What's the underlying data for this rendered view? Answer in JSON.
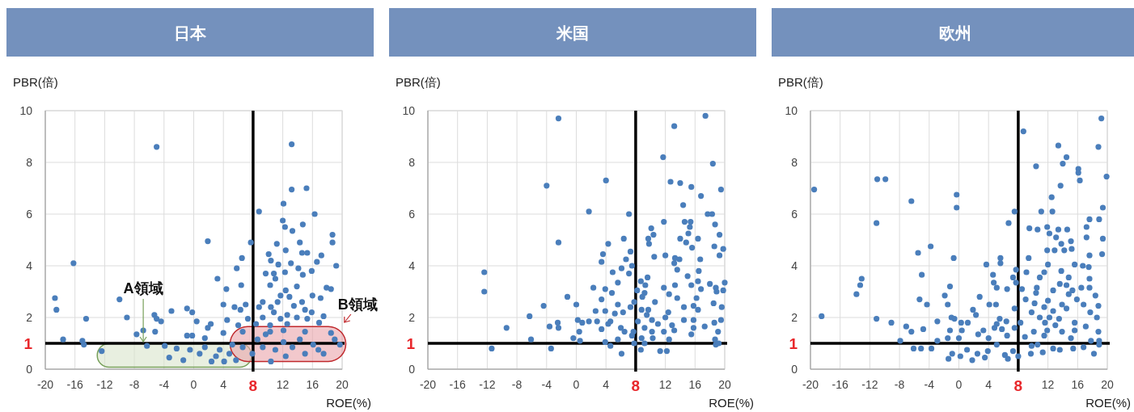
{
  "chart_data": [
    {
      "type": "scatter",
      "title": "日本",
      "xlabel": "ROE(%)",
      "ylabel": "PBR(倍)",
      "color": "#4a7ebb",
      "marker": "circle",
      "grid": true,
      "xlim": [
        -20,
        20
      ],
      "ylim": [
        0,
        10
      ],
      "xticks": [
        -20,
        -16,
        -12,
        -8,
        -4,
        0,
        4,
        12,
        16,
        20
      ],
      "yticks": [
        0,
        2,
        4,
        6,
        8,
        10
      ],
      "ref_lines": [
        {
          "axis": "x",
          "value": 8,
          "label": "8",
          "color": "#000000"
        },
        {
          "axis": "y",
          "value": 1,
          "label": "1",
          "color": "#000000"
        }
      ],
      "annotations": [
        {
          "text": "A領域",
          "x": -6.8,
          "y": 1
        },
        {
          "text": "B領域",
          "x": 19,
          "y": 1.5
        }
      ],
      "x": [
        -5,
        13.2,
        13.2,
        15.2,
        12.1,
        8.8,
        16.3,
        12,
        12.3,
        13.3,
        14.7,
        1.9,
        7.7,
        11.2,
        14.3,
        18.7,
        18.7,
        -16.2,
        6.5,
        10.1,
        12.4,
        14.6,
        15.3,
        17.2,
        16.6,
        10.4,
        11.4,
        13.1,
        19.2,
        5.8,
        9.7,
        10.8,
        12.3,
        14.1,
        15.9,
        11,
        14.7,
        3.2,
        4.4,
        6.4,
        10.3,
        13.9,
        12.4,
        17.9,
        18.5,
        -18.7,
        -10,
        11.7,
        12.9,
        16,
        17.1,
        9.3,
        11.3,
        14.6,
        4,
        7,
        8.8,
        10.4,
        13.5,
        -18.5,
        -0.9,
        -3,
        5.5,
        6.3,
        15,
        -0.2,
        10.8,
        12.6,
        15.9,
        -5.3,
        -9,
        -14.5,
        -5,
        -4.4,
        0.4,
        4.5,
        7.3,
        9.3,
        11.7,
        13.9,
        15.3,
        17.5,
        2.3,
        1.9,
        6,
        8.4,
        10.3,
        12.6,
        16.9,
        -5.2,
        -7.7,
        -6.8,
        -0.9,
        -0.2,
        1.5,
        4,
        6.6,
        10.3,
        12.1,
        15,
        18.5,
        -17.6,
        -15,
        -14.8,
        -6.3,
        -12.4,
        -3.9,
        -2.3,
        -3.3,
        -1.4,
        -0.5,
        0.8,
        1.5,
        2.4,
        3,
        3.5,
        4.1,
        4.8,
        5.7,
        5.2,
        8.6,
        9.3,
        10.4,
        11,
        12.1,
        12.4,
        13.3,
        14.3,
        15,
        16.1,
        16.8,
        17.5,
        19,
        19.7,
        7.9,
        6.6,
        9.7
      ],
      "values": [
        8.6,
        8.7,
        6.95,
        7,
        6.4,
        6.1,
        6,
        5.75,
        5.5,
        5.35,
        5.6,
        4.95,
        4.9,
        4.85,
        4.9,
        5.2,
        4.9,
        4.1,
        4.3,
        4.45,
        4.6,
        4.5,
        4.5,
        4.4,
        4.15,
        4.2,
        4.05,
        4.1,
        4,
        3.9,
        3.7,
        3.7,
        3.75,
        3.9,
        3.8,
        3.5,
        3.65,
        3.5,
        3.1,
        3.25,
        3.25,
        3.2,
        3.05,
        3.15,
        3.1,
        2.75,
        2.7,
        2.85,
        2.8,
        2.85,
        2.75,
        2.6,
        2.6,
        2.6,
        2.5,
        2.5,
        2.4,
        2.4,
        2.45,
        2.3,
        2.35,
        2.25,
        2.4,
        2.3,
        2.3,
        2.2,
        2.2,
        2.1,
        2.2,
        2.1,
        2,
        1.95,
        1.95,
        1.85,
        1.85,
        1.9,
        1.95,
        2,
        1.95,
        2,
        1.95,
        2.05,
        1.75,
        1.6,
        1.7,
        1.75,
        1.7,
        1.75,
        1.8,
        1.45,
        1.35,
        1.5,
        1.3,
        1.3,
        1.2,
        1.4,
        1.45,
        1.45,
        1.5,
        1.45,
        1.4,
        1.15,
        1.1,
        0.95,
        0.9,
        0.7,
        0.9,
        0.8,
        0.45,
        0.35,
        0.75,
        0.6,
        0.85,
        0.3,
        0.5,
        0.75,
        0.3,
        0.6,
        0.35,
        0.95,
        1.15,
        0.85,
        0.3,
        0.75,
        1.05,
        0.5,
        0.85,
        1.15,
        0.6,
        0.95,
        0.75,
        0.6,
        1.15,
        0.95,
        0.6,
        0.85,
        1.35
      ]
    },
    {
      "type": "scatter",
      "title": "米国",
      "xlabel": "ROE(%)",
      "ylabel": "PBR(倍)",
      "color": "#4a7ebb",
      "marker": "circle",
      "grid": true,
      "xlim": [
        -20,
        20
      ],
      "ylim": [
        0,
        10
      ],
      "xticks": [
        -20,
        -16,
        -12,
        -8,
        -4,
        0,
        4,
        12,
        16,
        20
      ],
      "yticks": [
        0,
        2,
        4,
        6,
        8,
        10
      ],
      "ref_lines": [
        {
          "axis": "x",
          "value": 8,
          "label": "8",
          "color": "#000000"
        },
        {
          "axis": "y",
          "value": 1,
          "label": "1",
          "color": "#000000"
        }
      ],
      "x": [
        -2.4,
        17.4,
        13.2,
        11.7,
        18.4,
        -4,
        4,
        12.7,
        14,
        15.5,
        19.5,
        16.8,
        1.7,
        7.1,
        14.4,
        17.7,
        18.3,
        11.8,
        14.6,
        15.4,
        18.7,
        15.3,
        10.1,
        10.4,
        15.1,
        19.3,
        -2.4,
        4.3,
        6.4,
        9.7,
        14,
        14.8,
        16.4,
        9.8,
        15.6,
        18.6,
        19.8,
        7.3,
        10.5,
        3.6,
        6.7,
        12,
        13.3,
        13.9,
        16.7,
        19.3,
        3.4,
        13.2,
        -12.4,
        4.9,
        6.1,
        7.5,
        13.6,
        16.5,
        7.1,
        9.6,
        8.7,
        15,
        16.4,
        20,
        5.6,
        9.3,
        11.8,
        13.3,
        15.5,
        18,
        18.8,
        -12.4,
        2.3,
        3.9,
        4.8,
        8.2,
        9.2,
        12.5,
        18.9,
        19.8,
        -1.2,
        3.4,
        16.8,
        13.6,
        8.9,
        7.8,
        10.6,
        16.2,
        0,
        5.6,
        7.3,
        18.5,
        -4.4,
        14.5,
        15.8,
        19.6,
        2.6,
        3.9,
        8.8,
        9.7,
        12.4,
        16.4,
        -6.3,
        5.2,
        6.3,
        9.5,
        12,
        0.2,
        1.7,
        2.8,
        0.8,
        4.6,
        8.3,
        10.2,
        14.5,
        15.8,
        19.5,
        -9.4,
        -3.6,
        -2.5,
        -2.4,
        3.4,
        4.3,
        6,
        6.5,
        9.2,
        11,
        12.9,
        15.8,
        17.3,
        18.6,
        0.4,
        7.7,
        10.2,
        11.8,
        13.2,
        15.5,
        19.1,
        -6.1,
        -0.4,
        0.5,
        5.6,
        7.5,
        8.8,
        10.3,
        12.5,
        18.7,
        -11.4,
        -3.4,
        4.6,
        3.9,
        6.1,
        7.8,
        8.7,
        9.2,
        11.3,
        12.2,
        18.8,
        19.2
      ],
      "values": [
        9.7,
        9.8,
        9.4,
        8.2,
        7.95,
        7.1,
        7.3,
        7.25,
        7.2,
        7.05,
        6.95,
        6.7,
        6.1,
        6,
        6.35,
        6,
        6,
        5.7,
        5.7,
        5.7,
        5.6,
        5.5,
        5.45,
        5.2,
        5.25,
        5.2,
        4.9,
        4.85,
        5.05,
        5.05,
        5.05,
        4.9,
        5.05,
        4.85,
        4.7,
        4.75,
        4.65,
        4.55,
        4.35,
        4.45,
        4.25,
        4.4,
        4.3,
        4.25,
        4.25,
        4.4,
        4.15,
        4.1,
        3.75,
        3.75,
        3.9,
        4,
        3.85,
        3.8,
        3.7,
        3.55,
        3.4,
        3.6,
        3.4,
        3.35,
        3.35,
        3.25,
        3.15,
        3.25,
        3.25,
        3.3,
        3.15,
        3,
        3.15,
        3.1,
        2.95,
        3.05,
        2.95,
        2.9,
        3,
        3.05,
        2.8,
        2.7,
        3.1,
        2.75,
        2.8,
        2.6,
        2.6,
        2.75,
        2.5,
        2.5,
        2.4,
        2.55,
        2.45,
        2.4,
        2.45,
        2.4,
        2.25,
        2.25,
        2.3,
        2.3,
        2.2,
        2.3,
        2.05,
        2.15,
        2.2,
        2.1,
        2,
        1.9,
        1.85,
        1.85,
        1.8,
        1.85,
        1.85,
        1.9,
        1.9,
        1.9,
        1.9,
        1.6,
        1.65,
        1.8,
        1.6,
        1.55,
        1.75,
        1.6,
        1.45,
        1.6,
        1.75,
        1.7,
        1.6,
        1.65,
        1.8,
        1.45,
        1.45,
        1.45,
        1.45,
        1.5,
        1.35,
        1.45,
        1.15,
        1.2,
        1.1,
        1.15,
        1.3,
        1.2,
        1.2,
        1.15,
        1.15,
        0.8,
        0.8,
        0.9,
        1.05,
        0.6,
        1,
        0.75,
        1,
        0.7,
        0.7,
        0.95,
        1
      ]
    },
    {
      "type": "scatter",
      "title": "欧州",
      "xlabel": "ROE(%)",
      "ylabel": "PBR(倍)",
      "color": "#4a7ebb",
      "marker": "circle",
      "grid": true,
      "xlim": [
        -20,
        20
      ],
      "ylim": [
        0,
        10
      ],
      "xticks": [
        -20,
        -16,
        -12,
        -8,
        -4,
        0,
        4,
        12,
        16,
        20
      ],
      "yticks": [
        0,
        2,
        4,
        6,
        8,
        10
      ],
      "ref_lines": [
        {
          "axis": "x",
          "value": 8,
          "label": "8",
          "color": "#000000"
        },
        {
          "axis": "y",
          "value": 1,
          "label": "1",
          "color": "#000000"
        }
      ],
      "x": [
        -19.5,
        -18.5,
        19.2,
        8.7,
        13.4,
        18.8,
        14.5,
        14,
        10.4,
        16.1,
        16.1,
        16.3,
        19.9,
        -11,
        -9.9,
        13.7,
        -0.3,
        12.5,
        -6.4,
        -0.3,
        19.4,
        7.5,
        11.1,
        12.6,
        -11.1,
        6.7,
        17.6,
        18.9,
        17.2,
        9.5,
        10.6,
        11.9,
        13.4,
        14.6,
        12.2,
        13.1,
        17.2,
        19.4,
        15.1,
        13.8,
        -3.8,
        -5.5,
        11.9,
        12.9,
        14.2,
        15.2,
        19.3,
        5.6,
        -0.7,
        9.4,
        17.6,
        5.6,
        3.7,
        12,
        15.6,
        16.7,
        17.5,
        7.7,
        9.1,
        13.8,
        -5,
        4.6,
        10.9,
        11.5,
        14.8,
        -13.1,
        -13.3,
        -13.8,
        7.3,
        17.6,
        4.7,
        5.1,
        7.7,
        13.6,
        14.5,
        -1.2,
        10.5,
        16.5,
        17.6,
        6.5,
        8.5,
        12.7,
        15.3,
        10.4,
        14.8,
        -1.9,
        2.8,
        18.4,
        -5.3,
        9,
        12,
        15.9,
        -1.5,
        10.2,
        13.9,
        16.8,
        -4.3,
        4.1,
        5,
        7.5,
        18.8,
        11.5,
        12.7,
        14.5,
        1.9,
        2.3,
        9.8,
        17.7,
        -11.1,
        -1,
        -0.6,
        10.9,
        12.2,
        13.5,
        18.6,
        5.5,
        -9.1,
        -2.9,
        0.3,
        1.2,
        5.1,
        6.4,
        8.3,
        11.6,
        15.6,
        13,
        -7.1,
        -6.4,
        -4.8,
        -1.2,
        0.4,
        3.3,
        4.8,
        5.8,
        7.5,
        10.1,
        11.9,
        13.9,
        15.6,
        17.1,
        18.8,
        -7.9,
        -2.9,
        -1.5,
        0,
        2.6,
        4,
        6.5,
        8.9,
        11.5,
        15.1,
        17.8,
        18.9,
        -6.1,
        -5.1,
        -3.7,
        -1.4,
        -0.9,
        0.2,
        1.1,
        1.8,
        2.5,
        3.5,
        3.9,
        5.1,
        6.2,
        6.6,
        7.3,
        8,
        9.7,
        11.3,
        12.7,
        13.6,
        15.4,
        16.8,
        18.2,
        18.9,
        10.6,
        9.8
      ],
      "values": [
        6.95,
        2.05,
        9.7,
        9.2,
        8.65,
        8.6,
        8.2,
        7.95,
        7.85,
        7.75,
        7.6,
        7.3,
        7.45,
        7.35,
        7.35,
        7.1,
        6.75,
        6.65,
        6.5,
        6.25,
        6.25,
        6.1,
        6.1,
        6.1,
        5.65,
        5.65,
        5.8,
        5.8,
        5.5,
        5.45,
        5.4,
        5.5,
        5.4,
        5.4,
        5.25,
        5.1,
        5.1,
        5.05,
        4.95,
        4.85,
        4.75,
        4.5,
        4.6,
        4.6,
        4.6,
        4.65,
        4.45,
        4.3,
        4.3,
        4.3,
        4.4,
        4.1,
        4.05,
        4.05,
        4.05,
        4,
        3.95,
        3.85,
        3.75,
        3.8,
        3.65,
        3.65,
        3.55,
        3.75,
        3.55,
        3.5,
        3.25,
        2.9,
        3.55,
        3.5,
        3.35,
        3.15,
        3.35,
        3.3,
        3.25,
        3.2,
        3.15,
        3.15,
        3.15,
        3.1,
        3.1,
        3.05,
        3.05,
        2.95,
        2.9,
        2.85,
        2.8,
        2.85,
        2.7,
        2.7,
        2.65,
        2.7,
        2.5,
        2.55,
        2.5,
        2.5,
        2.5,
        2.5,
        2.5,
        2.35,
        2.45,
        2.4,
        2.25,
        2.35,
        2.3,
        2.1,
        2.2,
        2.2,
        1.95,
        2,
        1.95,
        2,
        2,
        1.95,
        2,
        1.95,
        1.8,
        1.85,
        1.8,
        1.8,
        1.75,
        1.85,
        1.8,
        1.8,
        1.8,
        1.7,
        1.65,
        1.45,
        1.55,
        1.5,
        1.5,
        1.5,
        1.6,
        1.55,
        1.6,
        1.45,
        1.5,
        1.45,
        1.5,
        1.65,
        1.45,
        1.1,
        1.1,
        1.2,
        1.2,
        1.35,
        1.2,
        1.3,
        1.25,
        1.3,
        1.2,
        1.1,
        1.1,
        0.8,
        0.8,
        0.8,
        0.4,
        0.6,
        0.5,
        0.75,
        0.35,
        0.6,
        0.45,
        0.7,
        0.95,
        0.55,
        0.4,
        0.7,
        0.5,
        0.6,
        0.65,
        0.8,
        0.75,
        0.8,
        0.85,
        0.6,
        0.95,
        0.95,
        0.9
      ]
    }
  ]
}
